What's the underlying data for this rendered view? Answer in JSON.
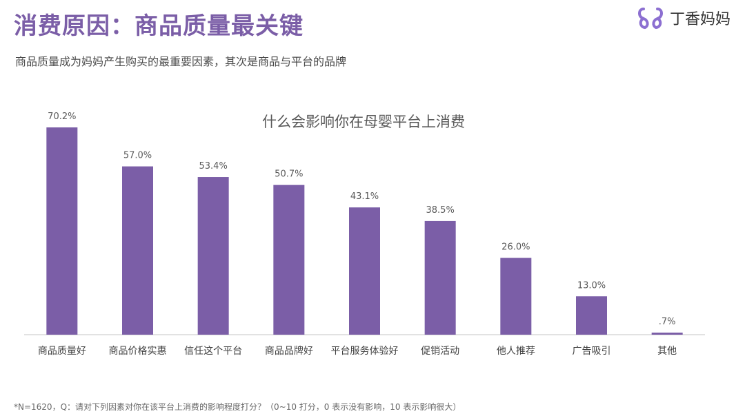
{
  "header": {
    "title": "消费原因：商品质量最关键",
    "subtitle": "商品质量成为妈妈产生购买的最重要因素，其次是商品与平台的品牌"
  },
  "logo": {
    "icon": "dingxiang-ribbon-logo",
    "text": "丁香妈妈",
    "color": "#8c6fd1"
  },
  "chart_data": {
    "type": "bar",
    "title": "什么会影响你在母婴平台上消费",
    "categories": [
      "商品质量好",
      "商品价格实惠",
      "信任这个平台",
      "商品品牌好",
      "平台服务体验好",
      "促销活动",
      "他人推荐",
      "广告吸引",
      "其他"
    ],
    "values": [
      70.2,
      57.0,
      53.4,
      50.7,
      43.1,
      38.5,
      26.0,
      13.0,
      0.7
    ],
    "data_labels": [
      "70.2%",
      "57.0%",
      "53.4%",
      "50.7%",
      "43.1%",
      "38.5%",
      "26.0%",
      "13.0%",
      ".7%"
    ],
    "unit": "%",
    "ylim": [
      0,
      70.2
    ],
    "grid": false,
    "legend": "none",
    "bar_color": "#7b5ea7",
    "axis_color": "#d9d9d9"
  },
  "footnote": "*N=1620，Q：请对下列因素对你在该平台上消费的影响程度打分？（0~10 打分，0 表示没有影响，10 表示影响很大）"
}
